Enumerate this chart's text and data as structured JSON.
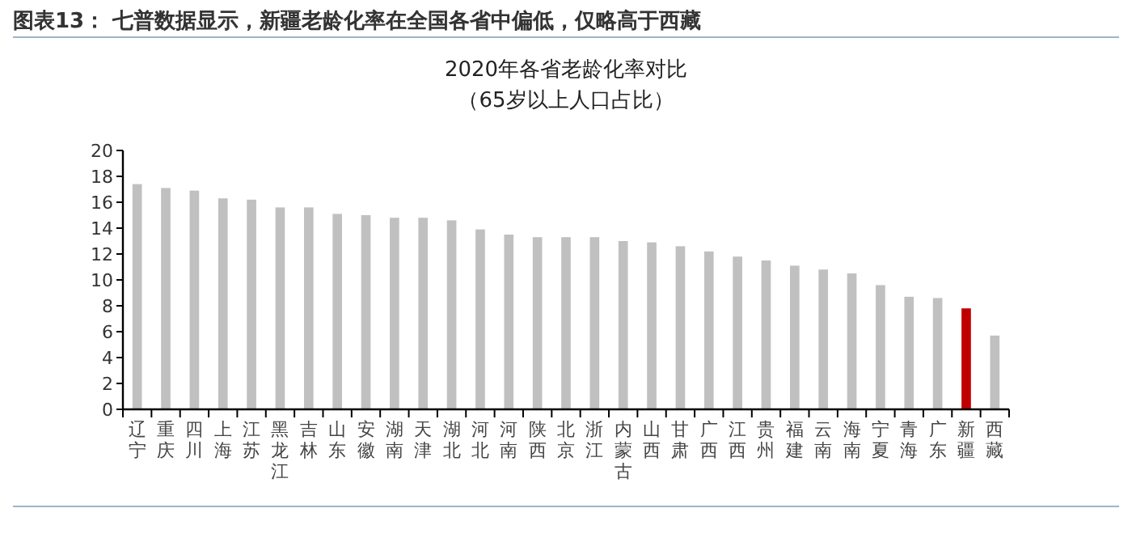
{
  "chart_data": {
    "type": "bar",
    "title": "图表13：  七普数据显示，新疆老龄化率在全国各省中偏低，仅略高于西藏",
    "subtitle": "2020年各省老龄化率对比",
    "annotations": [
      "（65岁以上人口占比）"
    ],
    "categories": [
      "辽宁",
      "重庆",
      "四川",
      "上海",
      "江苏",
      "黑龙江",
      "吉林",
      "山东",
      "安徽",
      "湖南",
      "天津",
      "湖北",
      "河北",
      "河南",
      "陕西",
      "北京",
      "浙江",
      "内蒙古",
      "山西",
      "甘肃",
      "广西",
      "江西",
      "贵州",
      "福建",
      "云南",
      "海南",
      "宁夏",
      "青海",
      "广东",
      "新疆",
      "西藏"
    ],
    "values": [
      17.4,
      17.1,
      16.9,
      16.3,
      16.2,
      15.6,
      15.6,
      15.1,
      15.0,
      14.8,
      14.8,
      14.6,
      13.9,
      13.5,
      13.3,
      13.3,
      13.3,
      13.0,
      12.9,
      12.6,
      12.2,
      11.8,
      11.5,
      11.1,
      10.8,
      10.5,
      9.6,
      8.7,
      8.6,
      7.8,
      5.7
    ],
    "colors": [
      "#c0c0c0",
      "#c0c0c0",
      "#c0c0c0",
      "#c0c0c0",
      "#c0c0c0",
      "#c0c0c0",
      "#c0c0c0",
      "#c0c0c0",
      "#c0c0c0",
      "#c0c0c0",
      "#c0c0c0",
      "#c0c0c0",
      "#c0c0c0",
      "#c0c0c0",
      "#c0c0c0",
      "#c0c0c0",
      "#c0c0c0",
      "#c0c0c0",
      "#c0c0c0",
      "#c0c0c0",
      "#c0c0c0",
      "#c0c0c0",
      "#c0c0c0",
      "#c0c0c0",
      "#c0c0c0",
      "#c0c0c0",
      "#c0c0c0",
      "#c0c0c0",
      "#c0c0c0",
      "#c00000",
      "#c0c0c0"
    ],
    "ylim": [
      0,
      20
    ],
    "yticks": [
      0,
      2,
      4,
      6,
      8,
      10,
      12,
      14,
      16,
      18,
      20
    ],
    "grid": false
  }
}
